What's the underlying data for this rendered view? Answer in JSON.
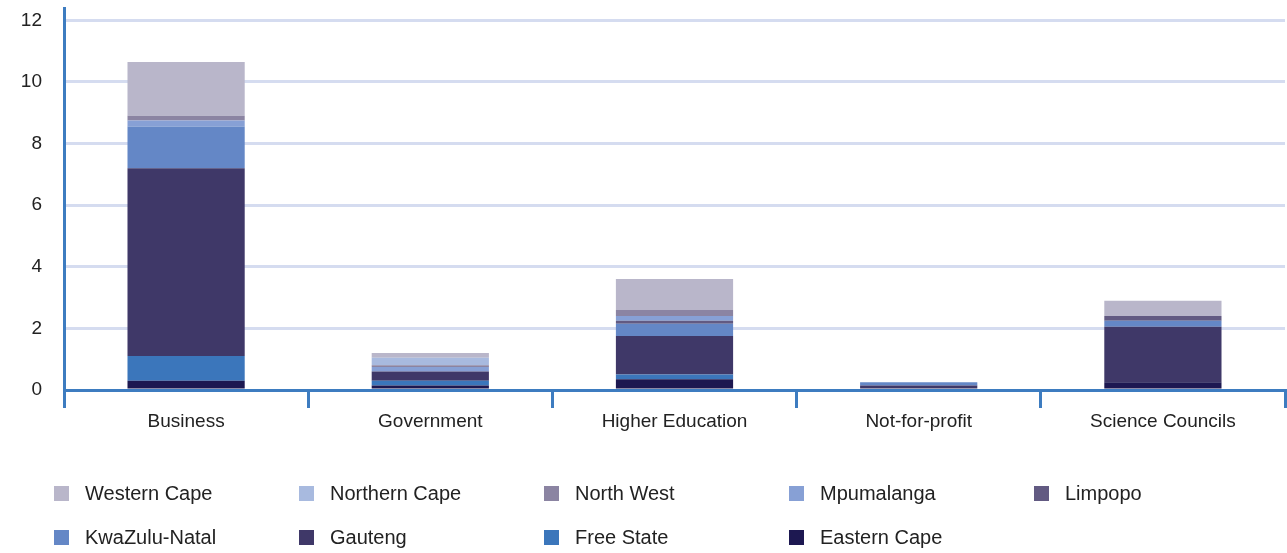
{
  "chart_data": {
    "type": "bar",
    "stacked": true,
    "categories": [
      "Business",
      "Government",
      "Higher Education",
      "Not-for-profit",
      "Science Councils"
    ],
    "series": [
      {
        "name": "Eastern Cape",
        "color": "#1d1851",
        "values": [
          0.3,
          0.15,
          0.35,
          0,
          0.25
        ]
      },
      {
        "name": "Free State",
        "color": "#3b76bb",
        "values": [
          0.8,
          0.15,
          0.15,
          0,
          0
        ]
      },
      {
        "name": "Gauteng",
        "color": "#3f3868",
        "values": [
          6.1,
          0.3,
          1.25,
          0.15,
          1.8
        ]
      },
      {
        "name": "KwaZulu-Natal",
        "color": "#6487c6",
        "values": [
          1.35,
          0,
          0.4,
          0.1,
          0.2
        ]
      },
      {
        "name": "Limpopo",
        "color": "#625a82",
        "values": [
          0,
          0,
          0.1,
          0,
          0.15
        ]
      },
      {
        "name": "Mpumalanga",
        "color": "#87a0d5",
        "values": [
          0.2,
          0.15,
          0.15,
          0,
          0
        ]
      },
      {
        "name": "North West",
        "color": "#8b84a2",
        "values": [
          0.15,
          0.05,
          0.2,
          0,
          0
        ]
      },
      {
        "name": "Northern Cape",
        "color": "#a8badf",
        "values": [
          0,
          0.25,
          0,
          0,
          0
        ]
      },
      {
        "name": "Western Cape",
        "color": "#b9b6ca",
        "values": [
          1.75,
          0.15,
          1.0,
          0,
          0.5
        ]
      }
    ],
    "ylim": [
      0,
      12.4
    ],
    "yticks": [
      0,
      2,
      4,
      6,
      8,
      10,
      12
    ],
    "grid": "y",
    "legend": "bottom"
  }
}
